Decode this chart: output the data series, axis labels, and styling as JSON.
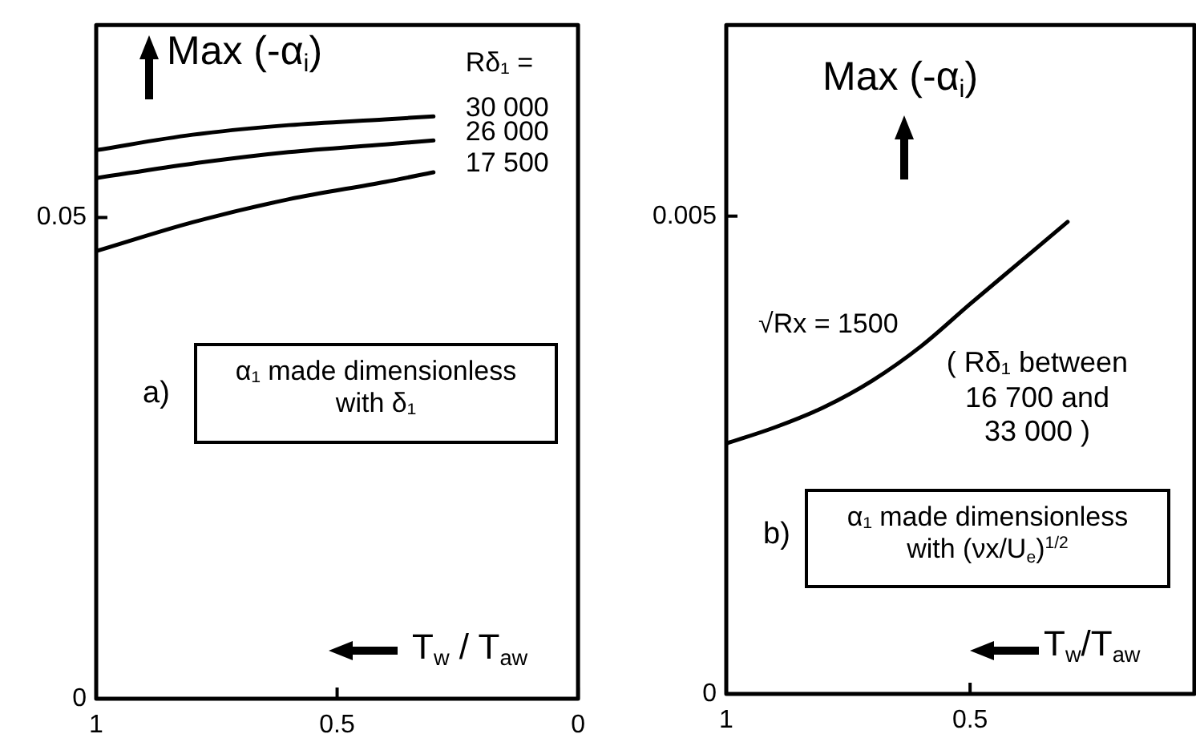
{
  "chart_data": [
    {
      "type": "line",
      "xlabel": "T$_{w}$ / T$_{aw}$",
      "ylabel": "Max (-α$_{i}$)",
      "legend_title": "Rδ₁ =",
      "x": [
        1,
        0.8,
        0.6,
        0.4,
        0.3
      ],
      "series": [
        {
          "name": "30 000",
          "color": "#000000",
          "values": [
            0.057,
            0.0586,
            0.0596,
            0.0602,
            0.0605
          ]
        },
        {
          "name": "26 000",
          "color": "#000000",
          "values": [
            0.0541,
            0.0556,
            0.0568,
            0.0576,
            0.058
          ]
        },
        {
          "name": "17 500",
          "color": "#000000",
          "values": [
            0.0465,
            0.0495,
            0.0519,
            0.0537,
            0.0547
          ]
        }
      ],
      "xlim": [
        1,
        0
      ],
      "ylim": [
        0,
        0.07
      ],
      "xticks": [
        1,
        0.5,
        0
      ],
      "yticks": [
        0,
        0.05
      ],
      "annotations": [
        "a)",
        "α₁ made dimensionless\nwith δ₁"
      ]
    },
    {
      "type": "line",
      "xlabel": "T$_{w}$/T$_{aw}$",
      "ylabel": "Max (-α$_{i}$)",
      "x": [
        1,
        0.9,
        0.8,
        0.7,
        0.6,
        0.5,
        0.4,
        0.3
      ],
      "series": [
        {
          "name": "√Rx = 1500",
          "color": "#000000",
          "values": [
            0.00262,
            0.00279,
            0.003,
            0.00328,
            0.00364,
            0.00408,
            0.00451,
            0.00494
          ]
        }
      ],
      "xlim": [
        1,
        0.04
      ],
      "ylim": [
        0,
        0.007
      ],
      "xticks": [
        1,
        0.5
      ],
      "yticks": [
        0,
        0.005
      ],
      "annotations": [
        "( Rδ₁ between\n16 700 and\n33 000 )",
        "b)",
        "α₁ made dimensionless\nwith (νx/U$_{e}$)$^{1/2}$"
      ]
    }
  ]
}
